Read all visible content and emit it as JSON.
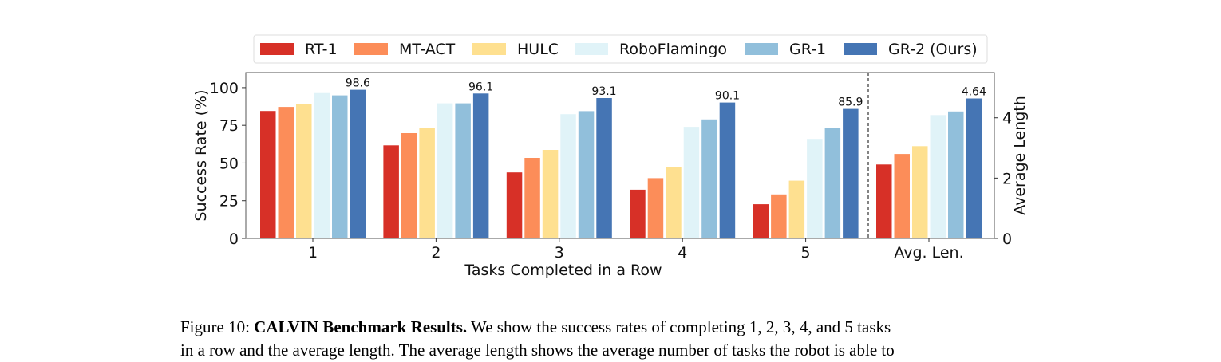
{
  "chart_data": {
    "type": "bar",
    "categories": [
      "1",
      "2",
      "3",
      "4",
      "5",
      "Avg. Len."
    ],
    "xlabel": "Tasks Completed in a Row",
    "ylabel": "Success Rate (%)",
    "ylabel_right": "Average Length",
    "ylim": [
      0,
      110
    ],
    "ylim_right": [
      0,
      5.5
    ],
    "yticks": [
      0,
      25,
      50,
      75,
      100
    ],
    "yticks_right": [
      0,
      2,
      4
    ],
    "legend_position": "top",
    "divider_before": "Avg. Len.",
    "series": [
      {
        "name": "RT-1",
        "color": "#d73027",
        "values": [
          84.5,
          61.7,
          43.8,
          32.3,
          22.7,
          2.45
        ]
      },
      {
        "name": "MT-ACT",
        "color": "#fc8d59",
        "values": [
          87.2,
          69.8,
          53.4,
          40.0,
          29.2,
          2.8
        ]
      },
      {
        "name": "HULC",
        "color": "#fee090",
        "values": [
          88.9,
          73.3,
          58.7,
          47.5,
          38.3,
          3.06
        ]
      },
      {
        "name": "RoboFlamingo",
        "color": "#e0f3f8",
        "values": [
          96.4,
          89.6,
          82.4,
          74.0,
          66.0,
          4.09
        ]
      },
      {
        "name": "GR-1",
        "color": "#91bfdb",
        "values": [
          94.9,
          89.6,
          84.4,
          78.9,
          73.1,
          4.21
        ]
      },
      {
        "name": "GR-2 (Ours)",
        "color": "#4575b4",
        "values": [
          98.6,
          96.1,
          93.1,
          90.1,
          85.9,
          4.64
        ]
      }
    ],
    "labeled_series": "GR-2 (Ours)",
    "labels": [
      "98.6",
      "96.1",
      "93.1",
      "90.1",
      "85.9",
      "4.64"
    ]
  },
  "caption": {
    "prefix": "Figure 10: ",
    "bold": "CALVIN Benchmark Results.",
    "text": " We show the success rates of completing 1, 2, 3, 4, and 5 tasks",
    "line2": "in a row and the average length. The average length shows the average number of tasks the robot is able to"
  }
}
